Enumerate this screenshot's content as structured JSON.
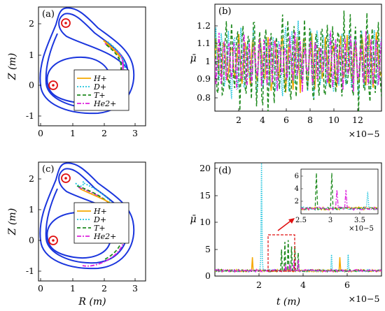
{
  "chart_data": [
    {
      "panel": "(a)",
      "type": "line",
      "xlabel": "",
      "ylabel": "Z (m)",
      "xlim": [
        0,
        3.3
      ],
      "ylim": [
        -1.3,
        2.4
      ],
      "xticks": [
        "0",
        "1",
        "2",
        "3"
      ],
      "yticks": [
        "-1",
        "0",
        "1",
        "2"
      ],
      "legend": [
        "H+",
        "D+",
        "T+",
        "He2+"
      ],
      "legend_placement": "bottom-right",
      "coil_markers": [
        {
          "x": 0.85,
          "y": 2.05
        },
        {
          "x": 0.45,
          "y": 0.0
        }
      ],
      "grid": false
    },
    {
      "panel": "(b)",
      "type": "line",
      "xlabel": "",
      "ylabel": "μ̄",
      "xlim": [
        0,
        14
      ],
      "ylim": [
        0.65,
        1.35
      ],
      "xticks": [
        "2",
        "4",
        "6",
        "8",
        "10",
        "12"
      ],
      "yticks": [
        "0.8",
        "0.9",
        "1",
        "1.1",
        "1.2"
      ],
      "x_multiplier": "×10−5",
      "series": [
        {
          "color": "#f5a800",
          "style": "solid"
        },
        {
          "color": "#22c4dd",
          "style": "dotted"
        },
        {
          "color": "#1f8a1f",
          "style": "dashed"
        },
        {
          "color": "#dd22dd",
          "style": "dashdot"
        }
      ],
      "grid": false
    },
    {
      "panel": "(c)",
      "type": "line",
      "xlabel": "R (m)",
      "ylabel": "Z (m)",
      "xlim": [
        0,
        3.3
      ],
      "ylim": [
        -1.3,
        2.4
      ],
      "xticks": [
        "0",
        "1",
        "2",
        "3"
      ],
      "yticks": [
        "-1",
        "0",
        "1",
        "2"
      ],
      "legend": [
        "H+",
        "D+",
        "T+",
        "He2+"
      ],
      "legend_placement": "right",
      "coil_markers": [
        {
          "x": 0.85,
          "y": 2.05
        },
        {
          "x": 0.45,
          "y": 0.0
        }
      ],
      "grid": false
    },
    {
      "panel": "(d)",
      "type": "line",
      "xlabel": "t (m)",
      "ylabel": "μ̄",
      "xlim": [
        0,
        7.5
      ],
      "ylim": [
        0,
        21
      ],
      "xticks": [
        "2",
        "4",
        "6"
      ],
      "yticks": [
        "0",
        "5",
        "10",
        "15",
        "20"
      ],
      "x_multiplier": "×10−5",
      "inset": {
        "xlim": [
          2.5,
          3.8
        ],
        "ylim": [
          0,
          7
        ],
        "xticks": [
          "2.5",
          "3",
          "3.5"
        ],
        "yticks": [
          "2",
          "4",
          "6"
        ],
        "x_multiplier": "×10−5"
      },
      "grid": false
    }
  ]
}
